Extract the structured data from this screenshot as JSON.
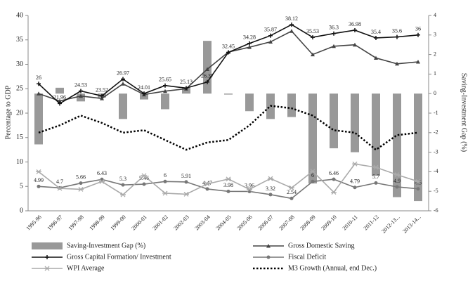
{
  "chart_data": {
    "type": "bar",
    "categories": [
      "1995-96",
      "1996-97",
      "1997-98",
      "1998-99",
      "1999-00",
      "2000-01",
      "2001-02",
      "2002-03",
      "2003-04",
      "2004-05",
      "2005-06",
      "2006-07",
      "2007-08",
      "2008-09",
      "2009-10",
      "2010-11",
      "2011-12",
      "2012-13...",
      "2013-14..."
    ],
    "ylabel": "Percentage to GDP",
    "y2label": "Saving-Investment Gap (%)",
    "ylim": [
      0,
      40
    ],
    "yticks": [
      0,
      5,
      10,
      15,
      20,
      25,
      30,
      35,
      40
    ],
    "y2lim": [
      -6,
      4
    ],
    "y2ticks": [
      -6,
      -5,
      -4,
      -3,
      -2,
      -1,
      0,
      1,
      2,
      3,
      4
    ],
    "series": [
      {
        "name": "Saving-Investment Gap (%)",
        "type": "bar",
        "axis": "y2",
        "color": "#999999",
        "values": [
          -2.6,
          0.3,
          -0.4,
          -0.2,
          -1.3,
          -0.3,
          -0.8,
          0.3,
          2.7,
          -0.05,
          -0.9,
          -1.3,
          -1.2,
          -4.6,
          -2.8,
          -3.0,
          -4.2,
          -5.3,
          -5.5
        ]
      },
      {
        "name": "Gross Domestic Saving",
        "type": "line",
        "marker": "triangle",
        "color": "#444444",
        "values": [
          24,
          22.5,
          23.5,
          23,
          26,
          23.8,
          24.5,
          25,
          29,
          32.5,
          33.5,
          34.6,
          36.8,
          32,
          33.7,
          34,
          31.3,
          30.1,
          30.5
        ]
      },
      {
        "name": "Gross Capital Formation/ Investment",
        "type": "line",
        "marker": "plus",
        "color": "#111111",
        "data_labels": true,
        "values": [
          26,
          21.96,
          24.53,
          23.52,
          26.97,
          24.01,
          25.65,
          25.13,
          26.37,
          32.45,
          34.28,
          35.87,
          38.12,
          35.53,
          36.3,
          36.98,
          35.4,
          35.6,
          36
        ]
      },
      {
        "name": "Fiscal Deficit",
        "type": "line",
        "marker": "circle",
        "color": "#777777",
        "data_labels": true,
        "values": [
          4.99,
          4.7,
          5.66,
          6.43,
          5.3,
          5.46,
          6,
          5.91,
          4.47,
          3.98,
          3.96,
          3.32,
          2.54,
          6.0,
          6.46,
          4.79,
          5.7,
          4.9,
          4.5
        ]
      },
      {
        "name": "WPI Average",
        "type": "line",
        "marker": "star",
        "color": "#aaaaaa",
        "values": [
          8,
          4.6,
          4.4,
          6,
          3.3,
          7.2,
          3.6,
          3.4,
          5.5,
          6.5,
          4.4,
          6.6,
          4.7,
          8.1,
          3.8,
          9.6,
          8.9,
          7.4,
          6
        ]
      },
      {
        "name": "M3 Growth (Annual, end Dec.)",
        "type": "line",
        "marker": "none",
        "dash": true,
        "color": "#000000",
        "values": [
          16,
          17.5,
          19.5,
          18,
          16,
          16.5,
          14.5,
          12.5,
          14,
          14.5,
          17.5,
          21.5,
          21,
          19.5,
          16.5,
          16,
          12.5,
          15.5,
          16
        ]
      }
    ]
  }
}
